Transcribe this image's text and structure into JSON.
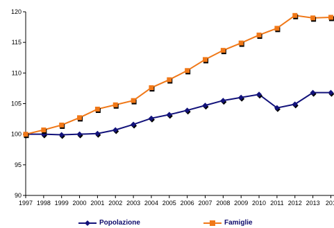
{
  "chart_data": {
    "type": "line",
    "title": "",
    "xlabel": "",
    "ylabel": "",
    "x": [
      "1997",
      "1998",
      "1999",
      "2000",
      "2001",
      "2002",
      "2003",
      "2004",
      "2005",
      "2006",
      "2007",
      "2008",
      "2009",
      "2010",
      "2011",
      "2012",
      "2013",
      "201"
    ],
    "ylim": [
      90,
      120
    ],
    "yticks": [
      90,
      95,
      100,
      105,
      110,
      115,
      120
    ],
    "grid": false,
    "legend_position": "bottom",
    "series": [
      {
        "name": "Popolazione",
        "color": "#12127a",
        "marker": "diamond",
        "values": [
          100.0,
          100.0,
          99.9,
          100.0,
          100.1,
          100.7,
          101.6,
          102.6,
          103.2,
          103.9,
          104.7,
          105.5,
          106.0,
          106.5,
          104.3,
          104.9,
          106.8,
          106.8
        ]
      },
      {
        "name": "Famiglie",
        "color": "#f07818",
        "marker": "square",
        "values": [
          100.0,
          100.7,
          101.5,
          102.7,
          104.1,
          104.8,
          105.5,
          107.6,
          108.9,
          110.4,
          112.2,
          113.7,
          114.9,
          116.2,
          117.3,
          119.4,
          119.0,
          119.1
        ]
      }
    ]
  }
}
